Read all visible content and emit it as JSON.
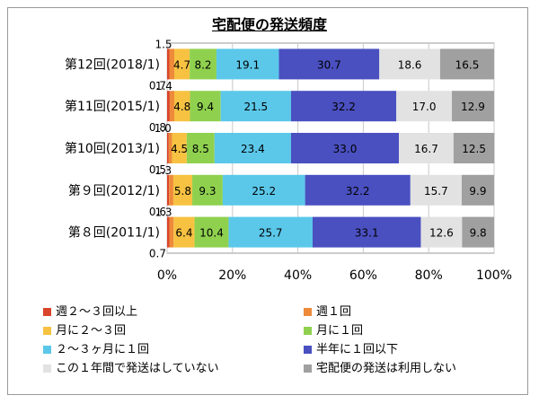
{
  "chart_data": {
    "type": "bar",
    "orientation": "horizontal",
    "stacked": "percent",
    "title": "宅配便の発送頻度",
    "categories": [
      "第12回(2018/1)",
      "第11回(2015/1)",
      "第10回(2013/1)",
      "第９回(2012/1)",
      "第８回(2011/1)"
    ],
    "series": [
      {
        "name": "週２～３回以上",
        "color": "#d9452b",
        "values": [
          0.7,
          0.8,
          0.5,
          0.6,
          0.7
        ],
        "labels": [
          "0.7",
          "0.8",
          "0.5",
          "0.6",
          "0.7"
        ]
      },
      {
        "name": "週１回",
        "color": "#ee8a3a",
        "values": [
          1.5,
          1.4,
          1.0,
          1.3,
          1.3
        ],
        "labels": [
          "1.5",
          "1.4",
          "1.0",
          "1.3",
          "1.3"
        ]
      },
      {
        "name": "月に２～３回",
        "color": "#f7c242",
        "values": [
          4.7,
          4.8,
          4.5,
          5.8,
          6.4
        ],
        "labels": [
          "4.7",
          "4.8",
          "4.5",
          "5.8",
          "6.4"
        ]
      },
      {
        "name": "月に１回",
        "color": "#8fd14f",
        "values": [
          8.2,
          9.4,
          8.5,
          9.3,
          10.4
        ],
        "labels": [
          "8.2",
          "9.4",
          "8.5",
          "9.3",
          "10.4"
        ]
      },
      {
        "name": "２～３ヶ月に１回",
        "color": "#5bc8ea",
        "values": [
          19.1,
          21.5,
          23.4,
          25.2,
          25.7
        ],
        "labels": [
          "19.1",
          "21.5",
          "23.4",
          "25.2",
          "25.7"
        ]
      },
      {
        "name": "半年に１回以下",
        "color": "#4a50c0",
        "values": [
          30.7,
          32.2,
          33.0,
          32.2,
          33.1
        ],
        "labels": [
          "30.7",
          "32.2",
          "33.0",
          "32.2",
          "33.1"
        ]
      },
      {
        "name": "この１年間で発送はしていない",
        "color": "#e2e2e2",
        "values": [
          18.6,
          17.0,
          16.7,
          15.7,
          12.6
        ],
        "labels": [
          "18.6",
          "17.0",
          "16.7",
          "15.7",
          "12.6"
        ]
      },
      {
        "name": "宅配便の発送は利用しない",
        "color": "#a0a0a0",
        "values": [
          16.5,
          12.9,
          12.5,
          9.9,
          9.8
        ],
        "labels": [
          "16.5",
          "12.9",
          "12.5",
          "9.9",
          "9.8"
        ]
      }
    ],
    "xlim": [
      0,
      100
    ],
    "xticks": [
      "0%",
      "20%",
      "40%",
      "60%",
      "80%",
      "100%"
    ],
    "grid": true,
    "legend": "bottom"
  }
}
